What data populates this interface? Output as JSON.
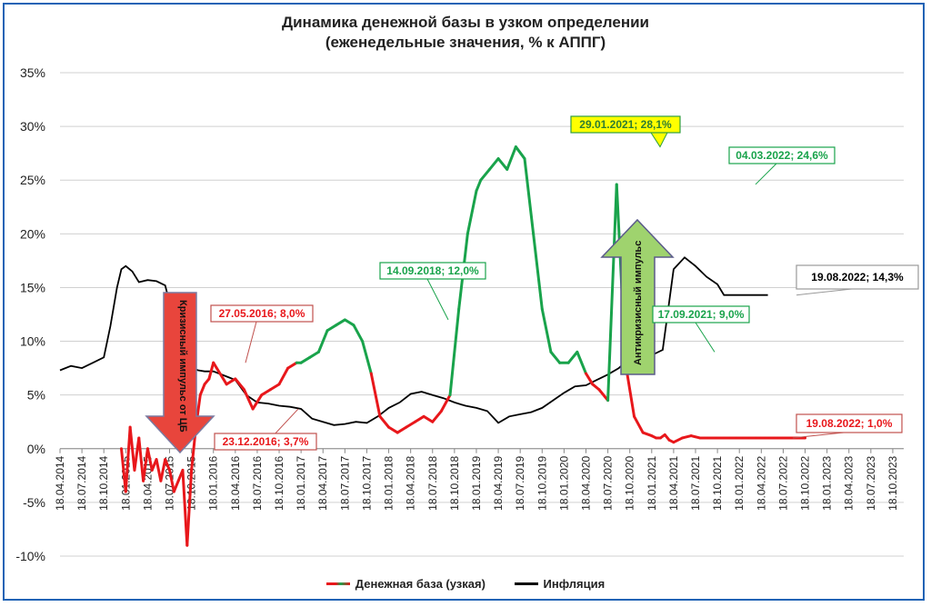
{
  "chart_data": {
    "type": "line",
    "title_line1": "Динамика денежной базы в узком определении",
    "title_line2": "(еженедельные значения, % к АППГ)",
    "ylim": [
      -10,
      35
    ],
    "yticks": [
      "-10%",
      "-5%",
      "0%",
      "5%",
      "10%",
      "15%",
      "20%",
      "25%",
      "30%",
      "35%"
    ],
    "xticks": [
      "18.04.2014",
      "18.07.2014",
      "18.10.2014",
      "18.01.2015",
      "18.04.2015",
      "18.07.2015",
      "18.10.2015",
      "18.01.2016",
      "18.04.2016",
      "18.07.2016",
      "18.10.2016",
      "18.01.2017",
      "18.04.2017",
      "18.07.2017",
      "18.10.2017",
      "18.01.2018",
      "18.04.2018",
      "18.07.2018",
      "18.10.2018",
      "18.01.2019",
      "18.04.2019",
      "18.07.2019",
      "18.10.2019",
      "18.01.2020",
      "18.04.2020",
      "18.07.2020",
      "18.10.2020",
      "18.01.2021",
      "18.04.2021",
      "18.07.2021",
      "18.10.2021",
      "18.01.2022",
      "18.04.2022",
      "18.07.2022",
      "18.10.2022",
      "18.01.2023",
      "18.04.2023",
      "18.07.2023",
      "18.10.2023"
    ],
    "series": [
      {
        "name": "Денежная база (узкая)",
        "color_low": "#e8171b",
        "color_high": "#19a34b",
        "x": [
          2.8,
          3.0,
          3.2,
          3.4,
          3.6,
          3.8,
          4.0,
          4.2,
          4.4,
          4.6,
          4.8,
          5.0,
          5.2,
          5.4,
          5.6,
          5.8,
          6.0,
          6.2,
          6.4,
          6.6,
          6.8,
          7.0,
          7.3,
          7.6,
          8.0,
          8.4,
          8.8,
          9.2,
          9.6,
          10.0,
          10.4,
          10.8,
          11.0,
          11.4,
          11.8,
          12.2,
          12.6,
          13.0,
          13.4,
          13.8,
          14.2,
          14.6,
          15.0,
          15.4,
          15.8,
          16.2,
          16.6,
          17.0,
          17.4,
          17.8,
          18.2,
          18.6,
          19.0,
          19.2,
          19.6,
          20.0,
          20.4,
          20.8,
          21.2,
          21.6,
          22.0,
          22.4,
          22.8,
          23.2,
          23.6,
          24.0,
          24.3,
          24.6,
          25.0,
          25.4,
          25.8,
          26.2,
          26.6,
          27.0,
          27.2,
          27.4,
          27.6,
          27.8,
          28.0,
          28.4,
          28.8,
          29.2,
          29.6,
          30.0,
          30.3,
          30.6,
          30.9,
          31.2,
          31.5,
          31.8,
          32.0,
          32.2,
          32.4,
          32.6,
          32.8,
          33.0,
          33.4,
          33.8,
          34.0
        ],
        "y": [
          0,
          -4,
          2,
          -2,
          1,
          -3,
          0,
          -2,
          -1,
          -3,
          -1,
          -2,
          -4,
          -3,
          -2,
          -9,
          -2,
          2,
          5,
          6,
          6.5,
          8.0,
          7,
          6,
          6.5,
          5.5,
          3.7,
          5,
          5.5,
          6,
          7.5,
          8,
          8,
          8.5,
          9,
          11,
          11.5,
          12.0,
          11.5,
          10,
          7,
          3,
          2,
          1.5,
          2,
          2.5,
          3,
          2.5,
          3.5,
          5,
          13,
          20,
          24,
          25,
          26,
          27,
          26,
          28.1,
          27,
          20,
          13,
          9,
          8,
          8,
          9,
          7,
          6,
          5.5,
          4.5,
          24.6,
          8,
          3,
          1.5,
          1.2,
          1.0,
          1.0,
          1.3,
          0.8,
          0.6,
          1,
          1.2,
          1.0,
          1.0,
          1.0,
          1.0,
          1.0,
          1.0,
          1.0,
          1.0,
          1.0,
          1.0,
          1.0,
          1.0,
          1.0,
          1.0,
          1.0,
          1.0,
          1.0,
          1.0
        ]
      },
      {
        "name": "Инфляция",
        "color": "#000000",
        "x": [
          0,
          0.5,
          1.0,
          1.5,
          2.0,
          2.3,
          2.6,
          2.8,
          3.0,
          3.3,
          3.6,
          4.0,
          4.4,
          4.8,
          5.2,
          5.6,
          5.8,
          6.0,
          6.3,
          6.6,
          7.0,
          7.5,
          8.0,
          8.5,
          9.0,
          9.5,
          10.0,
          10.5,
          11.0,
          11.5,
          12.0,
          12.5,
          13.0,
          13.5,
          14.0,
          14.5,
          15.0,
          15.5,
          16.0,
          16.5,
          17.0,
          17.5,
          18.0,
          18.5,
          19.0,
          19.5,
          20.0,
          20.5,
          21.0,
          21.5,
          22.0,
          22.5,
          23.0,
          23.5,
          24.0,
          24.5,
          25.0,
          25.5,
          26.0,
          26.5,
          27.0,
          27.5,
          28.0,
          28.5,
          29.0,
          29.5,
          30.0,
          30.3,
          30.6,
          30.9,
          31.2,
          31.5,
          31.8,
          32.0,
          32.3
        ],
        "y": [
          7.3,
          7.7,
          7.5,
          8,
          8.5,
          11.4,
          15,
          16.7,
          17,
          16.5,
          15.5,
          15.7,
          15.6,
          15.2,
          12,
          9.5,
          8,
          7.5,
          7.3,
          7.2,
          7.2,
          6.8,
          6.4,
          5,
          4.3,
          4.2,
          4,
          3.9,
          3.7,
          2.8,
          2.5,
          2.2,
          2.3,
          2.5,
          2.4,
          3,
          3.8,
          4.3,
          5.1,
          5.3,
          5,
          4.7,
          4.3,
          4,
          3.8,
          3.5,
          2.4,
          3.0,
          3.2,
          3.4,
          3.8,
          4.5,
          5.2,
          5.8,
          5.9,
          6.4,
          6.9,
          7.5,
          8.4,
          8.7,
          8.7,
          9.2,
          16.7,
          17.8,
          17.0,
          16.0,
          15.3,
          14.3,
          14.3,
          14.3,
          14.3,
          14.3,
          14.3,
          14.3,
          14.3
        ]
      }
    ],
    "annotations": [
      {
        "text": "29.01.2021; 28,1%",
        "style": "yellow"
      },
      {
        "text": "04.03.2022; 24,6%",
        "style": "green"
      },
      {
        "text": "14.09.2018; 12,0%",
        "style": "green"
      },
      {
        "text": "17.09.2021; 9,0%",
        "style": "green"
      },
      {
        "text": "27.05.2016; 8,0%",
        "style": "red"
      },
      {
        "text": "23.12.2016; 3,7%",
        "style": "red"
      },
      {
        "text": "19.08.2022; 1,0%",
        "style": "red"
      },
      {
        "text": "19.08.2022; 14,3%",
        "style": "black"
      }
    ],
    "arrows": {
      "down_label": "Кризисный импульс от ЦБ",
      "up_label": "Антикризисный импульс"
    },
    "legend": [
      {
        "label": "Денежная база (узкая)",
        "color": "#e8171b"
      },
      {
        "label": "Инфляция",
        "color": "#000000"
      }
    ]
  },
  "colors": {
    "frame": "#1f63b5",
    "grid": "#d0d0d0",
    "red": "#e8171b",
    "green": "#19a34b",
    "yellow": "#ffff00",
    "up_arrow": "#9fd36e",
    "down_arrow": "#e8453c"
  }
}
